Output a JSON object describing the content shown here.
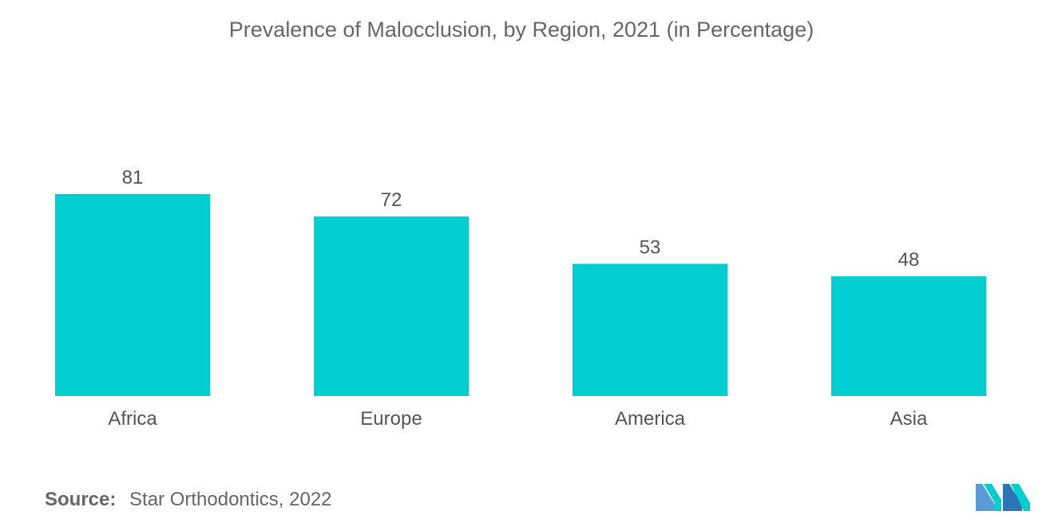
{
  "chart_data": {
    "type": "bar",
    "title": "Prevalence of Malocclusion, by Region, 2021 (in Percentage)",
    "categories": [
      "Africa",
      "Europe",
      "America",
      "Asia"
    ],
    "values": [
      81,
      72,
      53,
      48
    ],
    "ylim": [
      0,
      81
    ],
    "grid": false,
    "legend": "none",
    "bar_color": "#00CED1"
  },
  "source": {
    "label": "Source:",
    "text": "Star Orthodontics, 2022"
  },
  "logo": {
    "icon": "mordor-logo-icon",
    "colors": [
      "#5B9BD5",
      "#00CED1",
      "#2E75B6"
    ]
  }
}
